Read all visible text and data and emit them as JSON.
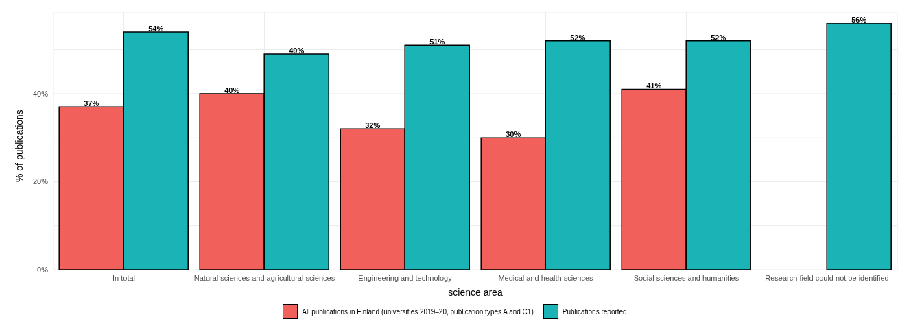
{
  "chart_data": {
    "type": "bar",
    "xlabel": "science area",
    "ylabel": "% of publications",
    "categories": [
      "In total",
      "Natural sciences and agricultural sciences",
      "Engineering and technology",
      "Medical and health sciences",
      "Social sciences and humanities",
      "Research field could not be identified"
    ],
    "series": [
      {
        "name": "All publications in Finland (universities 2019–20, publication types A and C1)",
        "color": "#f2605c",
        "values": [
          37,
          40,
          32,
          30,
          41,
          null
        ],
        "value_labels": [
          "37%",
          "40%",
          "32%",
          "30%",
          "41%",
          null
        ]
      },
      {
        "name": "Publications reported",
        "color": "#1ab3b6",
        "values": [
          54,
          49,
          51,
          52,
          52,
          56
        ],
        "value_labels": [
          "54%",
          "49%",
          "51%",
          "52%",
          "52%",
          "56%"
        ]
      }
    ],
    "ylim": [
      0,
      58.5
    ],
    "yticks": [
      {
        "value": 0,
        "label": "0%"
      },
      {
        "value": 10,
        "label": null
      },
      {
        "value": 20,
        "label": "20%"
      },
      {
        "value": 30,
        "label": null
      },
      {
        "value": 40,
        "label": "40%"
      },
      {
        "value": 50,
        "label": null
      }
    ],
    "grid": true,
    "legend": "bottom"
  }
}
